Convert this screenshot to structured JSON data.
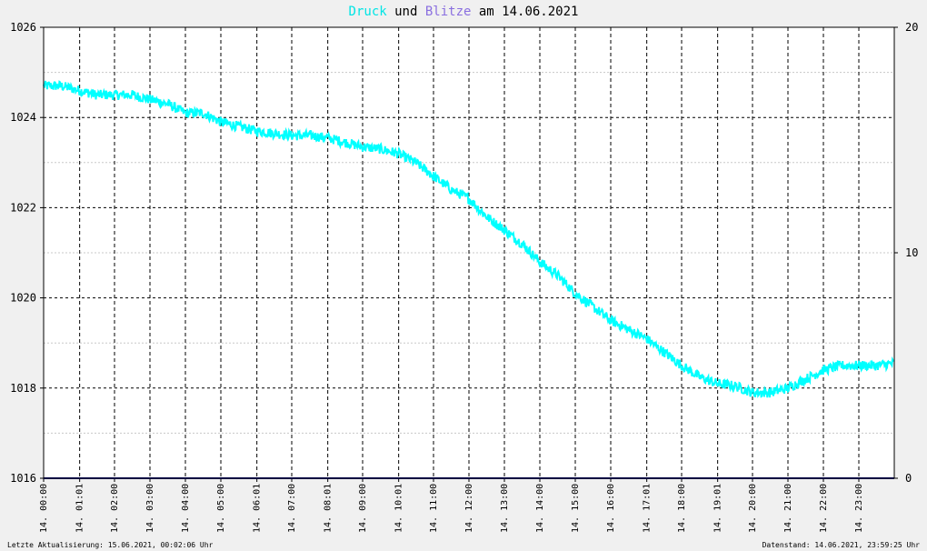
{
  "title": {
    "word1": "Druck",
    "word2": " und ",
    "word3": "Blitze",
    "word4": " am 14.06.2021",
    "color1": "#00e5e5",
    "color3": "#8a6fe0",
    "color_rest": "#000000"
  },
  "footer": {
    "left": "Letzte Aktualisierung: 15.06.2021, 00:02:06 Uhr",
    "right": "Datenstand: 14.06.2021, 23:59:25 Uhr"
  },
  "colors": {
    "background": "#f0f0f0",
    "plot_background": "#ffffff",
    "pressure": "#00ffff",
    "lightning": "#000080",
    "grid": "#000000",
    "minor_grid": "#c8c8c8"
  },
  "chart_data": {
    "type": "line",
    "x_ticks": [
      "14. 00:00",
      "14. 01:01",
      "14. 02:00",
      "14. 03:00",
      "14. 04:00",
      "14. 05:00",
      "14. 06:01",
      "14. 07:00",
      "14. 08:01",
      "14. 09:00",
      "14. 10:01",
      "14. 11:00",
      "14. 12:00",
      "14. 13:00",
      "14. 14:00",
      "14. 15:00",
      "14. 16:00",
      "14. 17:01",
      "14. 18:00",
      "14. 19:01",
      "14. 20:00",
      "14. 21:00",
      "14. 22:00",
      "14. 23:00"
    ],
    "x_tick_hours": [
      0,
      1.0167,
      2,
      3,
      4,
      5,
      6.0167,
      7,
      8.0167,
      9,
      10.0167,
      11,
      12,
      13,
      14,
      15,
      16,
      17.0167,
      18,
      19.0167,
      20,
      21,
      22,
      23
    ],
    "xlim": [
      0,
      24
    ],
    "y_left_ticks": [
      1016,
      1018,
      1020,
      1022,
      1024,
      1026
    ],
    "y_left_lim": [
      1016,
      1026
    ],
    "y_right_ticks": [
      0,
      10,
      20
    ],
    "y_right_lim": [
      0,
      20
    ],
    "grid": true,
    "series": [
      {
        "name": "Druck",
        "axis": "left",
        "x": [
          0,
          0.5,
          1,
          1.5,
          2,
          2.5,
          3,
          3.5,
          4,
          4.5,
          5,
          5.5,
          6,
          6.5,
          7,
          7.5,
          8,
          8.5,
          9,
          9.5,
          10,
          10.5,
          11,
          11.5,
          12,
          12.5,
          13,
          13.5,
          14,
          14.5,
          15,
          15.5,
          16,
          16.5,
          17,
          17.5,
          18,
          18.5,
          19,
          19.5,
          20,
          20.5,
          21,
          21.5,
          22,
          22.5,
          23,
          23.5,
          24
        ],
        "values": [
          1024.7,
          1024.7,
          1024.6,
          1024.5,
          1024.5,
          1024.5,
          1024.4,
          1024.3,
          1024.1,
          1024.1,
          1023.9,
          1023.8,
          1023.7,
          1023.65,
          1023.6,
          1023.6,
          1023.55,
          1023.45,
          1023.35,
          1023.3,
          1023.2,
          1023.0,
          1022.7,
          1022.4,
          1022.2,
          1021.8,
          1021.5,
          1021.2,
          1020.8,
          1020.5,
          1020.1,
          1019.8,
          1019.5,
          1019.3,
          1019.1,
          1018.8,
          1018.5,
          1018.25,
          1018.1,
          1018.05,
          1017.9,
          1017.9,
          1018.0,
          1018.2,
          1018.4,
          1018.5,
          1018.5,
          1018.5,
          1018.55
        ]
      },
      {
        "name": "Blitze",
        "axis": "right",
        "x": [
          0,
          24
        ],
        "values": [
          0,
          0
        ]
      }
    ]
  }
}
